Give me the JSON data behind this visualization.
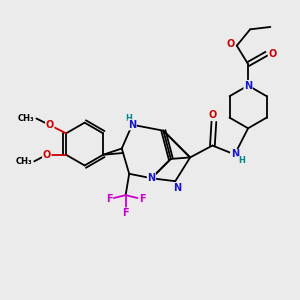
{
  "background_color": "#ebebeb",
  "figsize": [
    3.0,
    3.0
  ],
  "dpi": 100,
  "colors": {
    "C": "#000000",
    "N": "#1414cc",
    "O": "#cc0000",
    "F": "#cc00cc",
    "H": "#008888",
    "bond": "#000000"
  },
  "bond_lw": 1.3
}
